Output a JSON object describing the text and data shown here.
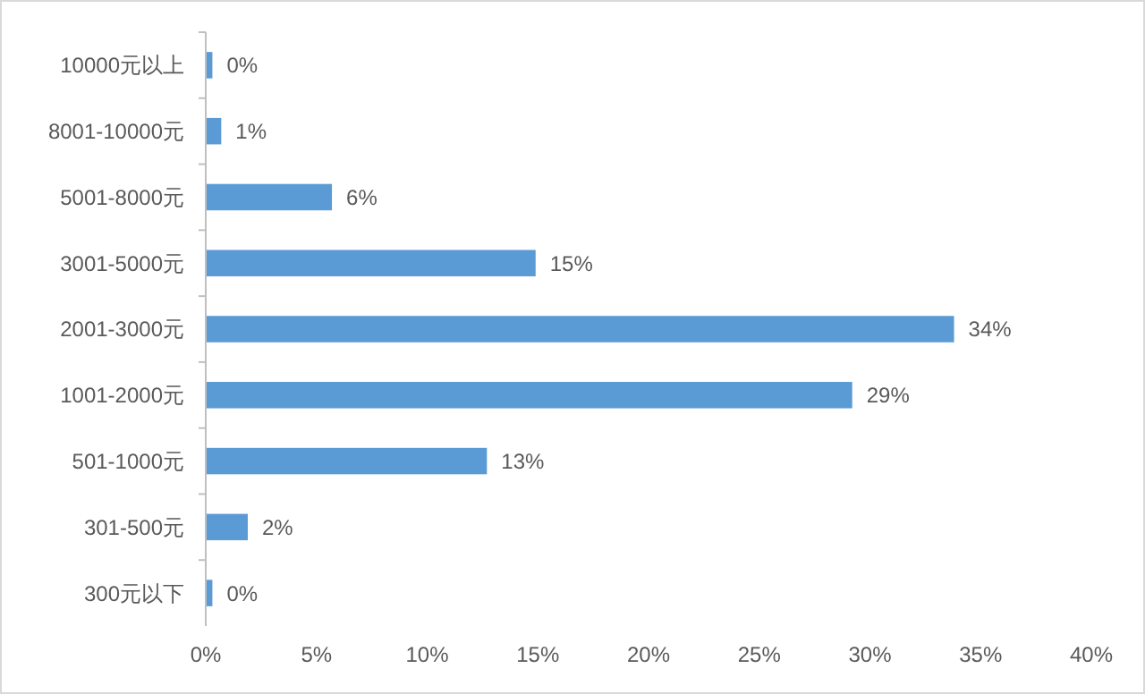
{
  "chart_data": {
    "type": "bar",
    "orientation": "horizontal",
    "categories": [
      "10000元以上",
      "8001-10000元",
      "5001-8000元",
      "3001-5000元",
      "2001-3000元",
      "1001-2000元",
      "501-1000元",
      "301-500元",
      "300元以下"
    ],
    "values": [
      0.3,
      0.7,
      5.7,
      14.9,
      33.8,
      29.2,
      12.7,
      1.9,
      0.3
    ],
    "value_labels": [
      "0%",
      "1%",
      "6%",
      "15%",
      "34%",
      "29%",
      "13%",
      "2%",
      "0%"
    ],
    "color": "#5b9bd5",
    "xlim": [
      0,
      40
    ],
    "xticks": [
      {
        "value": 0,
        "label": "0%"
      },
      {
        "value": 5,
        "label": "5%"
      },
      {
        "value": 10,
        "label": "10%"
      },
      {
        "value": 15,
        "label": "15%"
      },
      {
        "value": 20,
        "label": "20%"
      },
      {
        "value": 25,
        "label": "25%"
      },
      {
        "value": 30,
        "label": "30%"
      },
      {
        "value": 35,
        "label": "35%"
      },
      {
        "value": 40,
        "label": "40%"
      }
    ],
    "grid": false
  }
}
